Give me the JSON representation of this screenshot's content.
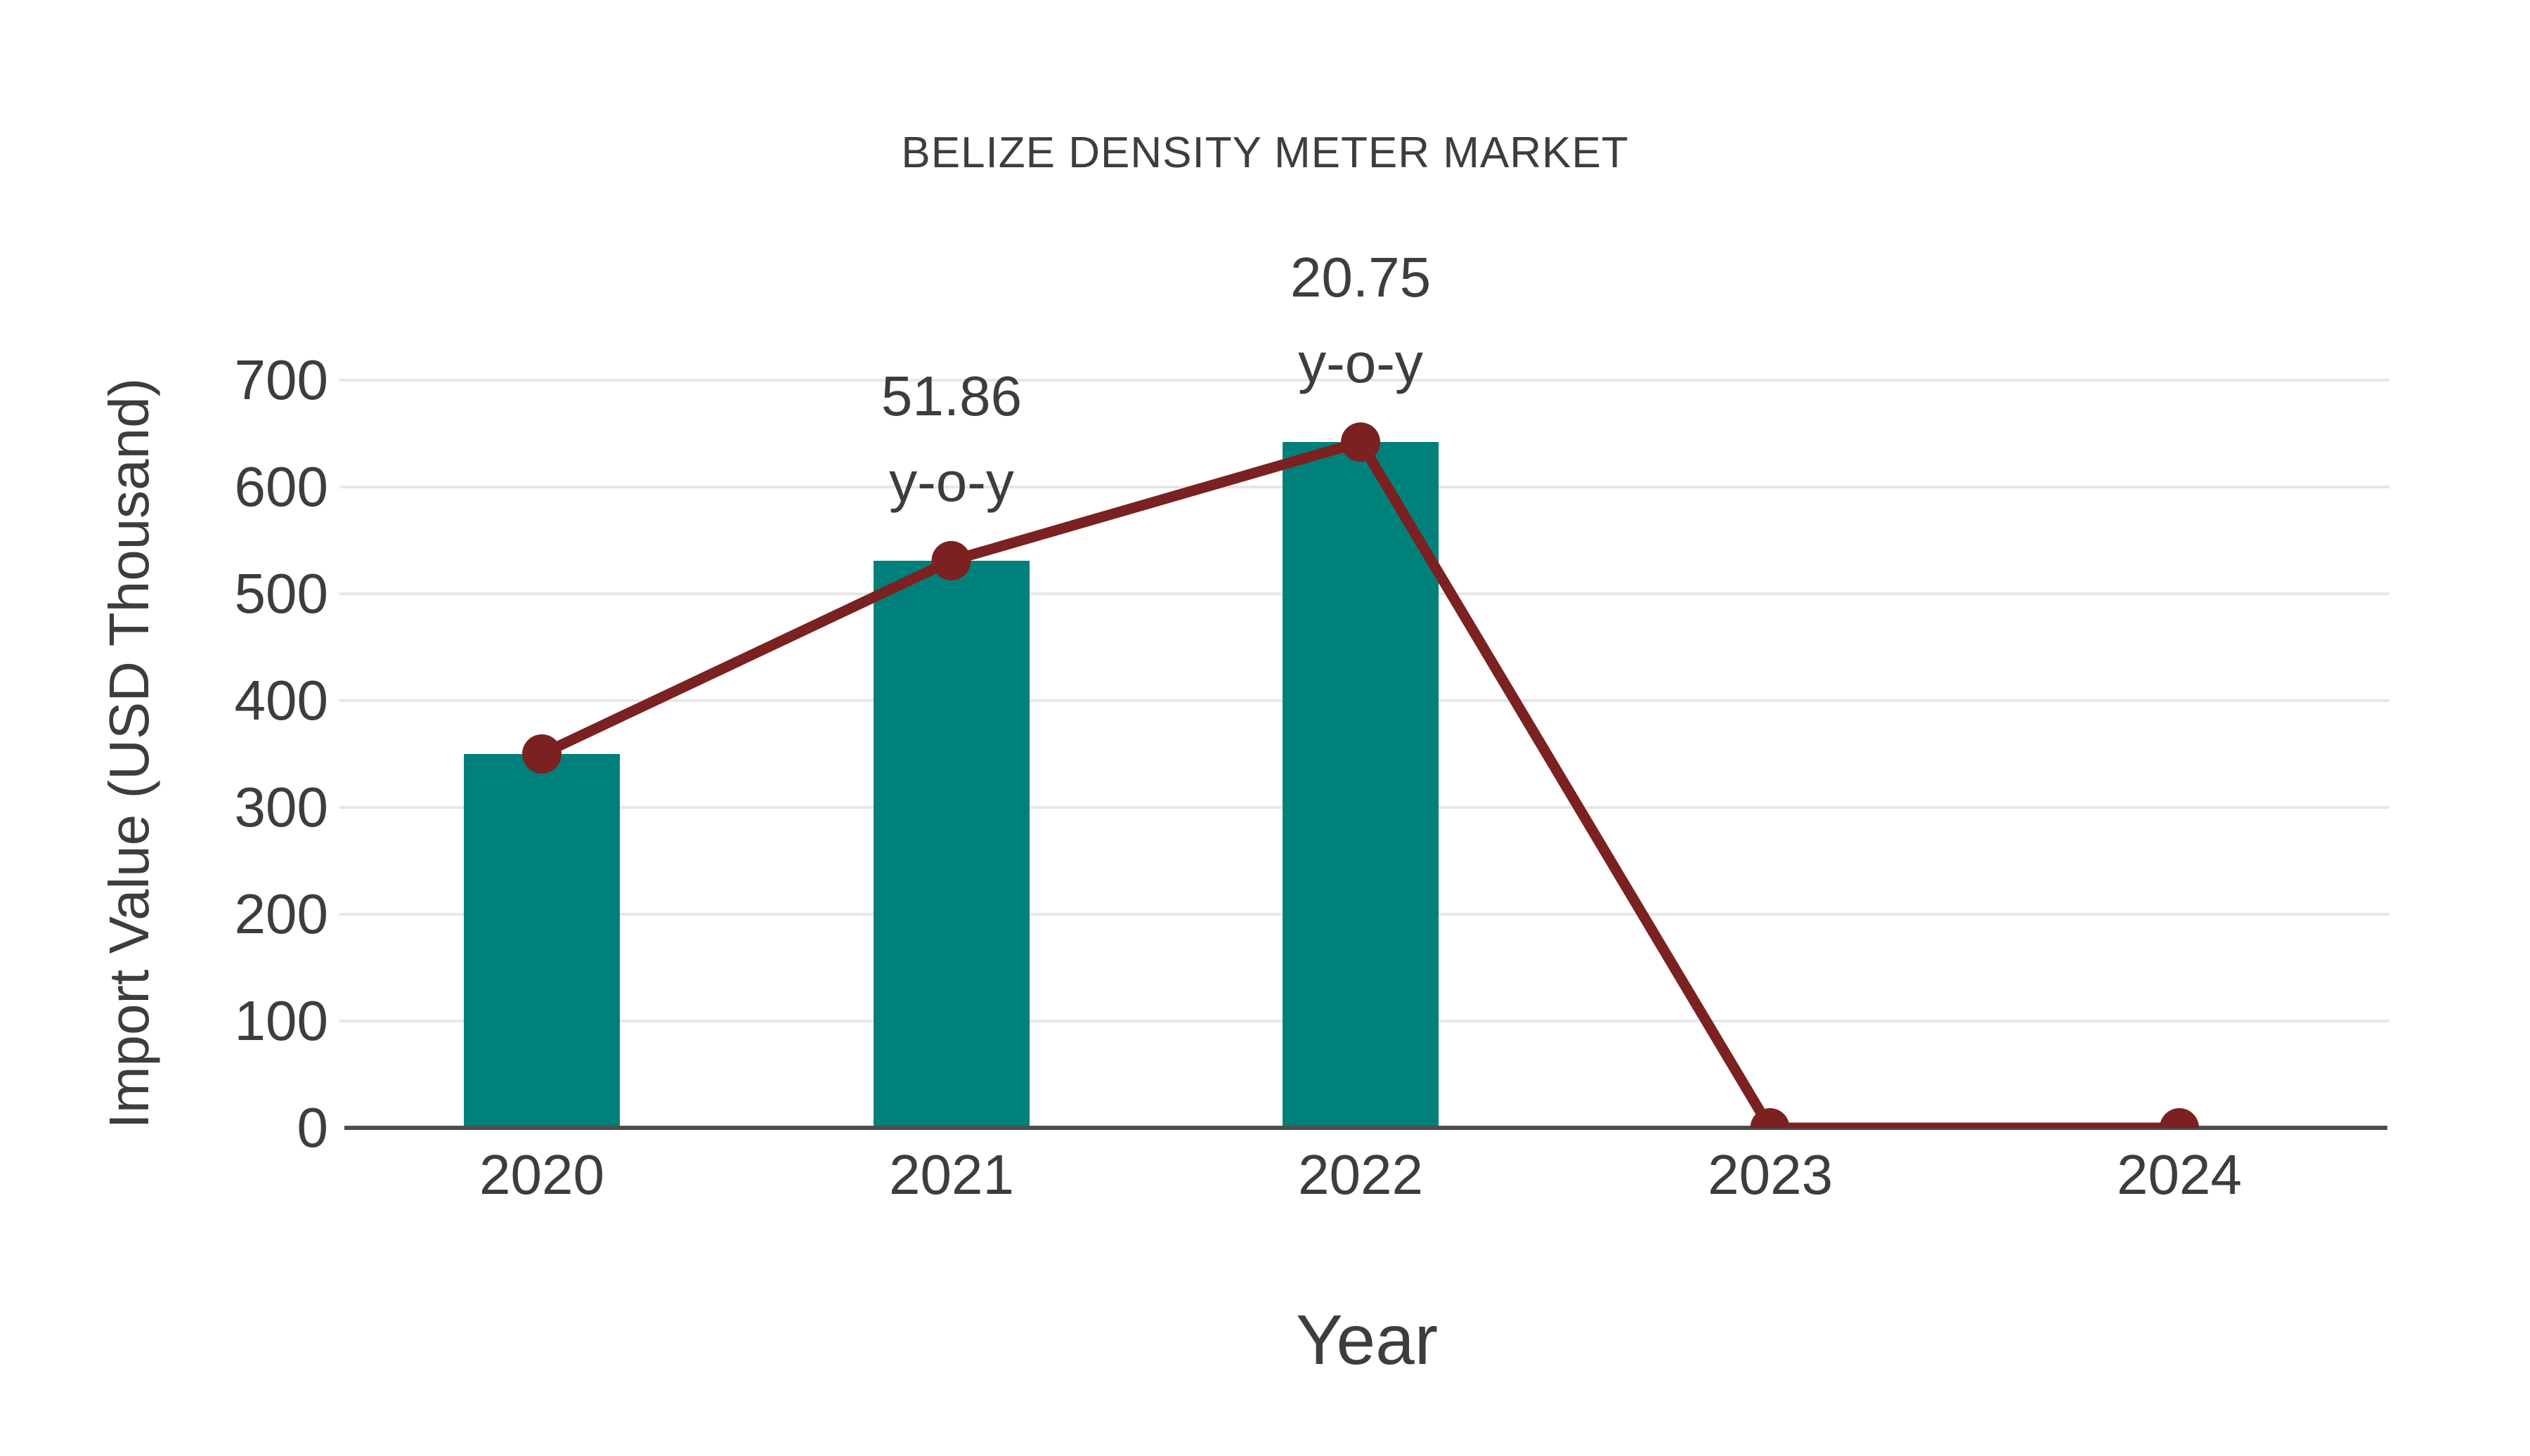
{
  "chart_data": {
    "type": "bar",
    "title": "BELIZE DENSITY METER MARKET",
    "xlabel": "Year",
    "ylabel": "Import Value (USD Thousand)",
    "categories": [
      "2020",
      "2021",
      "2022",
      "2023",
      "2024"
    ],
    "series": [
      {
        "name": "import-value-bars",
        "type": "bar",
        "values": [
          350,
          531,
          642,
          0,
          0
        ]
      },
      {
        "name": "import-value-trend",
        "type": "line",
        "values": [
          350,
          531,
          642,
          0,
          0
        ]
      }
    ],
    "annotations": [
      {
        "category": "2021",
        "text": "51.86",
        "subtext": "y-o-y"
      },
      {
        "category": "2022",
        "text": "20.75",
        "subtext": "y-o-y"
      }
    ],
    "ylim": [
      0,
      700
    ],
    "yticks": [
      0,
      100,
      200,
      300,
      400,
      500,
      600,
      700
    ],
    "grid": "horizontal",
    "legend": "none",
    "colors": {
      "bar": "#00807b",
      "line": "#7b2121",
      "marker": "#7b2121",
      "text": "#3d3d3d",
      "gridline": "#e7e7e7",
      "axis": "#4d4d4d",
      "background": "#ffffff"
    }
  }
}
